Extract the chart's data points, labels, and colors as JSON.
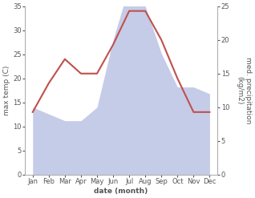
{
  "months": [
    "Jan",
    "Feb",
    "Mar",
    "Apr",
    "May",
    "Jun",
    "Jul",
    "Aug",
    "Sep",
    "Oct",
    "Nov",
    "Dec"
  ],
  "month_positions": [
    1,
    2,
    3,
    4,
    5,
    6,
    7,
    8,
    9,
    10,
    11,
    12
  ],
  "temperature": [
    13,
    19,
    24,
    21,
    21,
    27,
    34,
    34,
    28,
    20,
    13,
    13
  ],
  "precipitation": [
    10,
    9,
    8,
    8,
    10,
    20,
    28,
    25,
    18,
    13,
    13,
    12
  ],
  "temp_color": "#c0504d",
  "precip_color": "#c5cce8",
  "left_ylabel": "max temp (C)",
  "right_ylabel": "med. precipitation\n(kg/m2)",
  "xlabel": "date (month)",
  "left_ylim": [
    0,
    35
  ],
  "right_ylim": [
    0,
    25
  ],
  "left_yticks": [
    0,
    5,
    10,
    15,
    20,
    25,
    30,
    35
  ],
  "right_yticks": [
    0,
    5,
    10,
    15,
    20,
    25
  ],
  "bg_color": "#ffffff",
  "spine_color": "#aaaaaa",
  "tick_color": "#555555",
  "label_fontsize": 6.5,
  "tick_fontsize": 6,
  "xlabel_fontweight": "bold",
  "temp_linewidth": 1.5
}
